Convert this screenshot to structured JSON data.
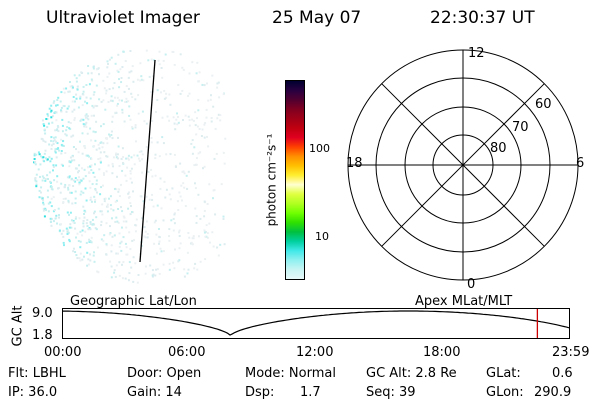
{
  "header": {
    "instrument": "Ultraviolet Imager",
    "date": "25 May 07",
    "time": "22:30:37 UT"
  },
  "colorbar": {
    "unit_label": "photon cm⁻²s⁻¹",
    "ticks": [
      "100",
      "10"
    ],
    "colors": [
      "#000030",
      "#280040",
      "#500030",
      "#800020",
      "#a00018",
      "#c00010",
      "#e00020",
      "#ff4000",
      "#ff9000",
      "#ffc000",
      "#ffee30",
      "#ffffd0",
      "#e0ff40",
      "#b0ff20",
      "#70ff00",
      "#30e000",
      "#00c040",
      "#00d0a0",
      "#40e8e8",
      "#90f0f0",
      "#c8f4f4",
      "#e8f8f8"
    ]
  },
  "polar_plot": {
    "mlt_labels": {
      "top": "12",
      "left": "18",
      "right": "6",
      "bottom": "0"
    },
    "lat_labels": [
      "60",
      "70",
      "80"
    ]
  },
  "orbit_panel": {
    "ylabel": "GC Alt",
    "y_ticks": [
      "9.0",
      "1.8"
    ],
    "left_label": "Geographic Lat/Lon",
    "right_label": "Apex MLat/MLT",
    "x_ticks": [
      "00:00",
      "06:00",
      "12:00",
      "18:00",
      "23:59"
    ],
    "current_time_fraction": 0.9375,
    "marker_color": "#cc0000"
  },
  "footer": {
    "flt": "Flt: LBHL",
    "door": "Door: Open",
    "mode": "Mode: Normal",
    "gc_alt": "GC Alt: 2.8 Re",
    "glat_label": "GLat:",
    "glat_value": "0.6",
    "ip": "IP: 36.0",
    "gain": "Gain: 14",
    "dsp_label": "Dsp:",
    "dsp_value": "1.7",
    "seq": "Seq: 39",
    "glon_label": "GLon:",
    "glon_value": "290.9"
  }
}
